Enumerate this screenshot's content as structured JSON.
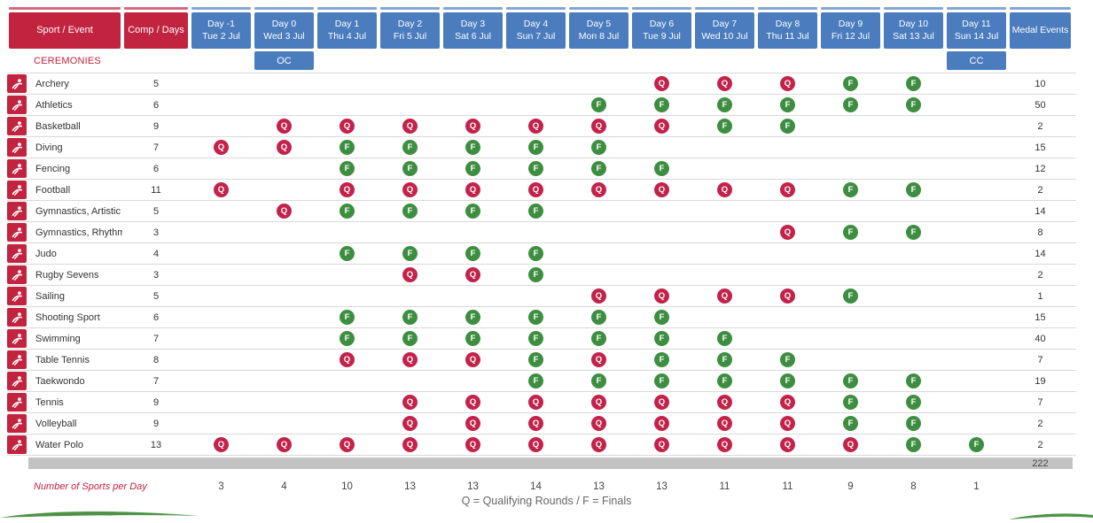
{
  "header": {
    "sport_event": "Sport / Event",
    "comp_days": "Comp / Days",
    "medal_events": "Medal Events",
    "days": [
      {
        "day": "Day -1",
        "date": "Tue 2 Jul"
      },
      {
        "day": "Day 0",
        "date": "Wed 3 Jul"
      },
      {
        "day": "Day 1",
        "date": "Thu 4 Jul"
      },
      {
        "day": "Day 2",
        "date": "Fri 5 Jul"
      },
      {
        "day": "Day 3",
        "date": "Sat 6 Jul"
      },
      {
        "day": "Day 4",
        "date": "Sun 7 Jul"
      },
      {
        "day": "Day 5",
        "date": "Mon 8 Jul"
      },
      {
        "day": "Day 6",
        "date": "Tue 9 Jul"
      },
      {
        "day": "Day 7",
        "date": "Wed 10 Jul"
      },
      {
        "day": "Day 8",
        "date": "Thu 11 Jul"
      },
      {
        "day": "Day 9",
        "date": "Fri 12 Jul"
      },
      {
        "day": "Day 10",
        "date": "Sat 13 Jul"
      },
      {
        "day": "Day 11",
        "date": "Sun 14 Jul"
      }
    ]
  },
  "ceremonies": {
    "label": "CEREMONIES",
    "opening": {
      "label": "OC",
      "day_index": 1
    },
    "closing": {
      "label": "CC",
      "day_index": 12
    }
  },
  "sports": [
    {
      "name": "Archery",
      "icon": "archery-icon",
      "comp_days": "5",
      "medal_events": "10",
      "schedule": [
        "",
        "",
        "",
        "",
        "",
        "",
        "",
        "Q",
        "Q",
        "Q",
        "F",
        "F",
        ""
      ]
    },
    {
      "name": "Athletics",
      "icon": "athletics-icon",
      "comp_days": "6",
      "medal_events": "50",
      "schedule": [
        "",
        "",
        "",
        "",
        "",
        "",
        "F",
        "F",
        "F",
        "F",
        "F",
        "F",
        ""
      ]
    },
    {
      "name": "Basketball",
      "icon": "basketball-icon",
      "comp_days": "9",
      "medal_events": "2",
      "schedule": [
        "",
        "Q",
        "Q",
        "Q",
        "Q",
        "Q",
        "Q",
        "Q",
        "F",
        "F",
        "",
        "",
        ""
      ]
    },
    {
      "name": "Diving",
      "icon": "diving-icon",
      "comp_days": "7",
      "medal_events": "15",
      "schedule": [
        "Q",
        "Q",
        "F",
        "F",
        "F",
        "F",
        "F",
        "",
        "",
        "",
        "",
        "",
        ""
      ]
    },
    {
      "name": "Fencing",
      "icon": "fencing-icon",
      "comp_days": "6",
      "medal_events": "12",
      "schedule": [
        "",
        "",
        "F",
        "F",
        "F",
        "F",
        "F",
        "F",
        "",
        "",
        "",
        "",
        ""
      ]
    },
    {
      "name": "Football",
      "icon": "football-icon",
      "comp_days": "11",
      "medal_events": "2",
      "schedule": [
        "Q",
        "",
        "Q",
        "Q",
        "Q",
        "Q",
        "Q",
        "Q",
        "Q",
        "Q",
        "F",
        "F",
        ""
      ]
    },
    {
      "name": "Gymnastics, Artistic",
      "icon": "gymnastics-artistic-icon",
      "comp_days": "5",
      "medal_events": "14",
      "schedule": [
        "",
        "Q",
        "F",
        "F",
        "F",
        "F",
        "",
        "",
        "",
        "",
        "",
        "",
        ""
      ]
    },
    {
      "name": "Gymnastics, Rhythmic",
      "icon": "gymnastics-rhythmic-icon",
      "comp_days": "3",
      "medal_events": "8",
      "schedule": [
        "",
        "",
        "",
        "",
        "",
        "",
        "",
        "",
        "",
        "Q",
        "F",
        "F",
        ""
      ]
    },
    {
      "name": "Judo",
      "icon": "judo-icon",
      "comp_days": "4",
      "medal_events": "14",
      "schedule": [
        "",
        "",
        "F",
        "F",
        "F",
        "F",
        "",
        "",
        "",
        "",
        "",
        "",
        ""
      ]
    },
    {
      "name": "Rugby Sevens",
      "icon": "rugby-sevens-icon",
      "comp_days": "3",
      "medal_events": "2",
      "schedule": [
        "",
        "",
        "",
        "Q",
        "Q",
        "F",
        "",
        "",
        "",
        "",
        "",
        "",
        ""
      ]
    },
    {
      "name": "Sailing",
      "icon": "sailing-icon",
      "comp_days": "5",
      "medal_events": "1",
      "schedule": [
        "",
        "",
        "",
        "",
        "",
        "",
        "Q",
        "Q",
        "Q",
        "Q",
        "F",
        "",
        ""
      ]
    },
    {
      "name": "Shooting Sport",
      "icon": "shooting-icon",
      "comp_days": "6",
      "medal_events": "15",
      "schedule": [
        "",
        "",
        "F",
        "F",
        "F",
        "F",
        "F",
        "F",
        "",
        "",
        "",
        "",
        ""
      ]
    },
    {
      "name": "Swimming",
      "icon": "swimming-icon",
      "comp_days": "7",
      "medal_events": "40",
      "schedule": [
        "",
        "",
        "F",
        "F",
        "F",
        "F",
        "F",
        "F",
        "F",
        "",
        "",
        "",
        ""
      ]
    },
    {
      "name": "Table Tennis",
      "icon": "table-tennis-icon",
      "comp_days": "8",
      "medal_events": "7",
      "schedule": [
        "",
        "",
        "Q",
        "Q",
        "Q",
        "F",
        "Q",
        "F",
        "F",
        "F",
        "",
        "",
        ""
      ]
    },
    {
      "name": "Taekwondo",
      "icon": "taekwondo-icon",
      "comp_days": "7",
      "medal_events": "19",
      "schedule": [
        "",
        "",
        "",
        "",
        "",
        "F",
        "F",
        "F",
        "F",
        "F",
        "F",
        "F",
        ""
      ]
    },
    {
      "name": "Tennis",
      "icon": "tennis-icon",
      "comp_days": "9",
      "medal_events": "7",
      "schedule": [
        "",
        "",
        "",
        "Q",
        "Q",
        "Q",
        "Q",
        "Q",
        "Q",
        "Q",
        "F",
        "F",
        ""
      ]
    },
    {
      "name": "Volleyball",
      "icon": "volleyball-icon",
      "comp_days": "9",
      "medal_events": "2",
      "schedule": [
        "",
        "",
        "",
        "Q",
        "Q",
        "Q",
        "Q",
        "Q",
        "Q",
        "Q",
        "F",
        "F",
        ""
      ]
    },
    {
      "name": "Water Polo",
      "icon": "water-polo-icon",
      "comp_days": "13",
      "medal_events": "2",
      "schedule": [
        "Q",
        "Q",
        "Q",
        "Q",
        "Q",
        "Q",
        "Q",
        "Q",
        "Q",
        "Q",
        "Q",
        "F",
        "F"
      ]
    }
  ],
  "totals": {
    "medal_events_total": "222",
    "sports_per_day_label": "Number of Sports per Day",
    "sports_per_day": [
      "3",
      "4",
      "10",
      "13",
      "13",
      "14",
      "13",
      "13",
      "11",
      "11",
      "9",
      "8",
      "1"
    ]
  },
  "legend": {
    "text": "Q = Qualifying Rounds / F = Finals"
  },
  "colors": {
    "header_red": "#c2233e",
    "header_blue": "#4a7cbe",
    "qualifying_red": "#c3234a",
    "finals_green": "#3e8e41",
    "total_bar_gray": "#c3c3c3",
    "swoosh_green": "#4e9347"
  }
}
